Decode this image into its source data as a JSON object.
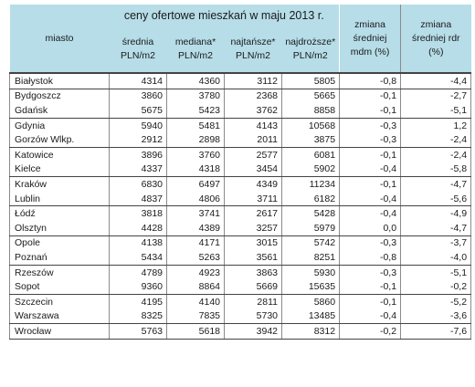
{
  "header": {
    "miasto": "miasto",
    "title": "ceny ofertowe mieszkań w maju 2013 r.",
    "col_srednia": [
      "średnia",
      "PLN/m2"
    ],
    "col_mediana": [
      "mediana*",
      "PLN/m2"
    ],
    "col_najtansze": [
      "najtańsze*",
      "PLN/m2"
    ],
    "col_najdrozsze": [
      "najdroższe*",
      "PLN/m2"
    ],
    "col_zm_mdm": [
      "zmiana",
      "średniej",
      "mdm (%)"
    ],
    "col_zm_rdr": [
      "zmiana",
      "średniej rdr",
      "(%)"
    ]
  },
  "rows": [
    {
      "miasto": "Białystok",
      "srednia": "4314",
      "mediana": "4360",
      "najtansze": "3112",
      "najdrozsze": "5805",
      "mdm": "-0,8",
      "rdr": "-4,4",
      "grp_end": true
    },
    {
      "miasto": "Bydgoszcz",
      "srednia": "3860",
      "mediana": "3780",
      "najtansze": "2368",
      "najdrozsze": "5665",
      "mdm": "-0,1",
      "rdr": "-2,7",
      "grp_end": false
    },
    {
      "miasto": "Gdańsk",
      "srednia": "5675",
      "mediana": "5423",
      "najtansze": "3762",
      "najdrozsze": "8858",
      "mdm": "-0,1",
      "rdr": "-5,1",
      "grp_end": true
    },
    {
      "miasto": "Gdynia",
      "srednia": "5940",
      "mediana": "5481",
      "najtansze": "4143",
      "najdrozsze": "10568",
      "mdm": "-0,3",
      "rdr": "1,2",
      "grp_end": false
    },
    {
      "miasto": "Gorzów Wlkp.",
      "srednia": "2912",
      "mediana": "2898",
      "najtansze": "2011",
      "najdrozsze": "3875",
      "mdm": "-0,3",
      "rdr": "-2,4",
      "grp_end": true
    },
    {
      "miasto": "Katowice",
      "srednia": "3896",
      "mediana": "3760",
      "najtansze": "2577",
      "najdrozsze": "6081",
      "mdm": "-0,1",
      "rdr": "-2,4",
      "grp_end": false
    },
    {
      "miasto": "Kielce",
      "srednia": "4337",
      "mediana": "4318",
      "najtansze": "3454",
      "najdrozsze": "5902",
      "mdm": "-0,4",
      "rdr": "-5,8",
      "grp_end": true
    },
    {
      "miasto": "Kraków",
      "srednia": "6830",
      "mediana": "6497",
      "najtansze": "4349",
      "najdrozsze": "11234",
      "mdm": "-0,1",
      "rdr": "-4,7",
      "grp_end": false
    },
    {
      "miasto": "Lublin",
      "srednia": "4837",
      "mediana": "4806",
      "najtansze": "3711",
      "najdrozsze": "6182",
      "mdm": "-0,4",
      "rdr": "-5,6",
      "grp_end": true
    },
    {
      "miasto": "Łódź",
      "srednia": "3818",
      "mediana": "3741",
      "najtansze": "2617",
      "najdrozsze": "5428",
      "mdm": "-0,4",
      "rdr": "-4,9",
      "grp_end": false
    },
    {
      "miasto": "Olsztyn",
      "srednia": "4428",
      "mediana": "4389",
      "najtansze": "3257",
      "najdrozsze": "5979",
      "mdm": "0,0",
      "rdr": "-4,7",
      "grp_end": true
    },
    {
      "miasto": "Opole",
      "srednia": "4138",
      "mediana": "4171",
      "najtansze": "3015",
      "najdrozsze": "5742",
      "mdm": "-0,3",
      "rdr": "-3,7",
      "grp_end": false
    },
    {
      "miasto": "Poznań",
      "srednia": "5434",
      "mediana": "5263",
      "najtansze": "3561",
      "najdrozsze": "8251",
      "mdm": "-0,8",
      "rdr": "-4,0",
      "grp_end": true
    },
    {
      "miasto": "Rzeszów",
      "srednia": "4789",
      "mediana": "4923",
      "najtansze": "3863",
      "najdrozsze": "5930",
      "mdm": "-0,3",
      "rdr": "-5,1",
      "grp_end": false
    },
    {
      "miasto": "Sopot",
      "srednia": "9360",
      "mediana": "8864",
      "najtansze": "5669",
      "najdrozsze": "15635",
      "mdm": "-0,1",
      "rdr": "-0,2",
      "grp_end": true
    },
    {
      "miasto": "Szczecin",
      "srednia": "4195",
      "mediana": "4140",
      "najtansze": "2811",
      "najdrozsze": "5860",
      "mdm": "-0,1",
      "rdr": "-5,2",
      "grp_end": false
    },
    {
      "miasto": "Warszawa",
      "srednia": "8325",
      "mediana": "7835",
      "najtansze": "5730",
      "najdrozsze": "13485",
      "mdm": "-0,4",
      "rdr": "-3,6",
      "grp_end": true
    },
    {
      "miasto": "Wrocław",
      "srednia": "5763",
      "mediana": "5618",
      "najtansze": "3942",
      "najdrozsze": "8312",
      "mdm": "-0,2",
      "rdr": "-7,6",
      "grp_end": true
    }
  ]
}
